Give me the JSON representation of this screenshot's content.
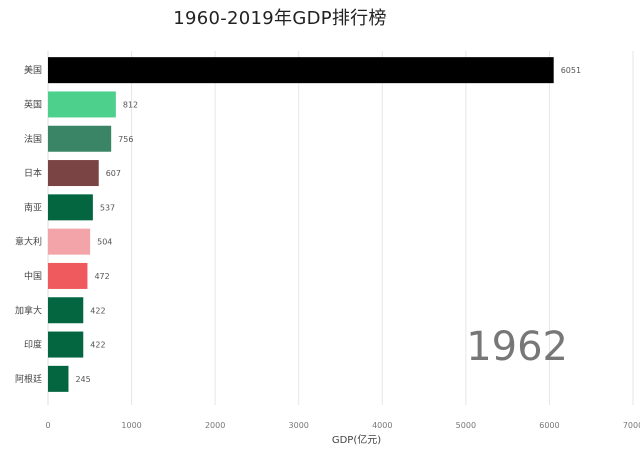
{
  "chart_data": {
    "type": "bar",
    "orientation": "horizontal",
    "title": "1960-2019年GDP排行榜",
    "xlabel": "GDP(亿元)",
    "ylabel": "",
    "xlim": [
      0,
      7000
    ],
    "x_ticks": [
      0,
      1000,
      2000,
      3000,
      4000,
      5000,
      6000,
      7000
    ],
    "grid": "vertical",
    "year": "1962",
    "categories": [
      "美国",
      "英国",
      "法国",
      "日本",
      "南亚",
      "意大利",
      "中国",
      "加拿大",
      "印度",
      "阿根廷"
    ],
    "values": [
      6051,
      812,
      756,
      607,
      537,
      504,
      472,
      422,
      422,
      245
    ],
    "colors": [
      "#000000",
      "#4dd08c",
      "#3a8565",
      "#7a4445",
      "#036640",
      "#f2a4a8",
      "#ef5a5f",
      "#036640",
      "#036640",
      "#036640"
    ]
  }
}
